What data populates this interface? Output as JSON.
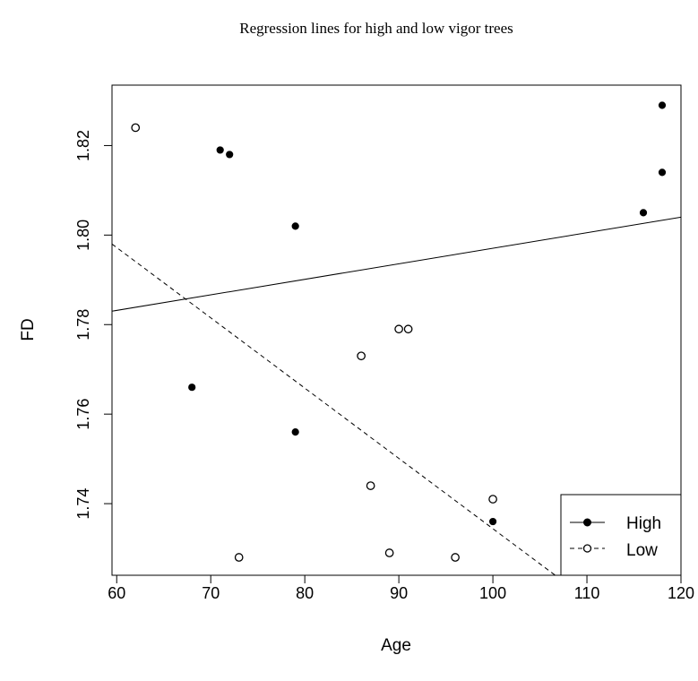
{
  "chart_data": {
    "type": "scatter",
    "title": "Regression lines for high and low vigor trees",
    "xlabel": "Age",
    "ylabel": "FD",
    "xlim": [
      59.5,
      120
    ],
    "ylim": [
      1.724,
      1.8335
    ],
    "xticks": [
      60,
      70,
      80,
      90,
      100,
      110,
      120
    ],
    "yticks": [
      1.74,
      1.76,
      1.78,
      1.8,
      1.82
    ],
    "ytick_labels": [
      "1.74",
      "1.76",
      "1.78",
      "1.80",
      "1.82"
    ],
    "grid": false,
    "legend_position": "bottom-right",
    "series": [
      {
        "name": "High",
        "marker": "filled-circle",
        "line_style": "solid",
        "points": [
          {
            "x": 68,
            "y": 1.766
          },
          {
            "x": 71,
            "y": 1.819
          },
          {
            "x": 72,
            "y": 1.818
          },
          {
            "x": 79,
            "y": 1.802
          },
          {
            "x": 79,
            "y": 1.756
          },
          {
            "x": 100,
            "y": 1.736
          },
          {
            "x": 116,
            "y": 1.805
          },
          {
            "x": 118,
            "y": 1.829
          },
          {
            "x": 118,
            "y": 1.814
          }
        ],
        "regression": {
          "x1": 59.5,
          "y1": 1.783,
          "x2": 120,
          "y2": 1.804
        }
      },
      {
        "name": "Low",
        "marker": "open-circle",
        "line_style": "dashed",
        "points": [
          {
            "x": 62,
            "y": 1.824
          },
          {
            "x": 73,
            "y": 1.728
          },
          {
            "x": 86,
            "y": 1.773
          },
          {
            "x": 87,
            "y": 1.744
          },
          {
            "x": 89,
            "y": 1.729
          },
          {
            "x": 90,
            "y": 1.779
          },
          {
            "x": 91,
            "y": 1.779
          },
          {
            "x": 96,
            "y": 1.728
          },
          {
            "x": 100,
            "y": 1.741
          }
        ],
        "regression": {
          "x1": 59.5,
          "y1": 1.798,
          "x2": 120,
          "y2": 1.703
        }
      }
    ]
  }
}
